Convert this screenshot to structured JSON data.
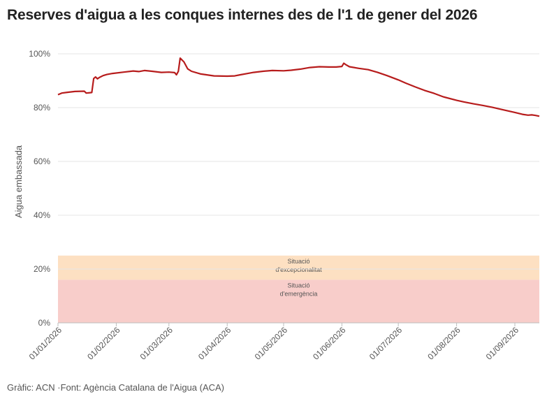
{
  "header": {
    "title": "Reserves d'aigua a les conques internes des de l'1 de gener del 2026"
  },
  "footer": {
    "source": "Gràfic: ACN ·Font: Agència Catalana de l'Aigua (ACA)"
  },
  "colors": {
    "line": "#b71c1c",
    "band_exceptional": "#fde0c2",
    "band_emergency": "#f8cdca",
    "grid": "#e6e6e6"
  },
  "chart_data": {
    "type": "line",
    "title": "Reserves d'aigua a les conques internes des de l'1 de gener del 2026",
    "xlabel": "",
    "ylabel": "Aigua embassada",
    "ylim": [
      0,
      100
    ],
    "xlim": [
      "2026-01-01",
      "2026-09-14"
    ],
    "yticks": [
      "0%",
      "20%",
      "40%",
      "60%",
      "80%",
      "100%"
    ],
    "yticks_values": [
      0,
      20,
      40,
      60,
      80,
      100
    ],
    "xticks": [
      {
        "date": "2026-01-01",
        "label": "01/01/2026"
      },
      {
        "date": "2026-02-01",
        "label": "01/02/2026"
      },
      {
        "date": "2026-03-01",
        "label": "01/03/2026"
      },
      {
        "date": "2026-04-01",
        "label": "01/04/2026"
      },
      {
        "date": "2026-05-01",
        "label": "01/05/2026"
      },
      {
        "date": "2026-06-01",
        "label": "01/06/2026"
      },
      {
        "date": "2026-07-01",
        "label": "01/07/2026"
      },
      {
        "date": "2026-08-01",
        "label": "01/08/2026"
      },
      {
        "date": "2026-09-01",
        "label": "01/09/2026"
      }
    ],
    "grid": true,
    "bands": [
      {
        "label_line1": "Situació",
        "label_line2": "d'excepcionalitat",
        "from": 16,
        "to": 25
      },
      {
        "label_line1": "Situació",
        "label_line2": "d'emergència",
        "from": 0,
        "to": 16
      }
    ],
    "series": [
      {
        "x": [
          "2026-01-01",
          "2026-01-03",
          "2026-01-06",
          "2026-01-10",
          "2026-01-15",
          "2026-01-16",
          "2026-01-19",
          "2026-01-20",
          "2026-01-21",
          "2026-01-22",
          "2026-01-23",
          "2026-01-25",
          "2026-01-27",
          "2026-01-30",
          "2026-02-05",
          "2026-02-10",
          "2026-02-13",
          "2026-02-16",
          "2026-02-20",
          "2026-02-25",
          "2026-03-01",
          "2026-03-04",
          "2026-03-05",
          "2026-03-06",
          "2026-03-07",
          "2026-03-09",
          "2026-03-11",
          "2026-03-13",
          "2026-03-18",
          "2026-03-25",
          "2026-04-01",
          "2026-04-05",
          "2026-04-08",
          "2026-04-12",
          "2026-04-15",
          "2026-04-20",
          "2026-04-25",
          "2026-05-01",
          "2026-05-05",
          "2026-05-10",
          "2026-05-15",
          "2026-05-20",
          "2026-05-25",
          "2026-05-29",
          "2026-06-01",
          "2026-06-02",
          "2026-06-03",
          "2026-06-05",
          "2026-06-10",
          "2026-06-15",
          "2026-06-20",
          "2026-06-25",
          "2026-07-01",
          "2026-07-05",
          "2026-07-10",
          "2026-07-15",
          "2026-07-20",
          "2026-07-25",
          "2026-08-01",
          "2026-08-05",
          "2026-08-10",
          "2026-08-15",
          "2026-08-20",
          "2026-08-25",
          "2026-09-01",
          "2026-09-05",
          "2026-09-08",
          "2026-09-10",
          "2026-09-12",
          "2026-09-14"
        ],
        "y": [
          84.8,
          85.4,
          85.7,
          86.0,
          86.1,
          85.4,
          85.6,
          90.8,
          91.4,
          90.7,
          91.2,
          91.9,
          92.3,
          92.7,
          93.2,
          93.6,
          93.4,
          93.8,
          93.5,
          93.1,
          93.2,
          93.0,
          92.2,
          93.5,
          98.4,
          97.0,
          94.4,
          93.5,
          92.5,
          91.8,
          91.7,
          91.8,
          92.2,
          92.7,
          93.1,
          93.5,
          93.8,
          93.7,
          93.9,
          94.3,
          94.9,
          95.2,
          95.1,
          95.1,
          95.3,
          96.5,
          96.0,
          95.2,
          94.6,
          94.1,
          93.1,
          91.9,
          90.3,
          89.1,
          87.7,
          86.4,
          85.3,
          84.0,
          82.7,
          82.1,
          81.4,
          80.8,
          80.1,
          79.3,
          78.2,
          77.5,
          77.2,
          77.3,
          77.1,
          76.8
        ]
      }
    ]
  }
}
